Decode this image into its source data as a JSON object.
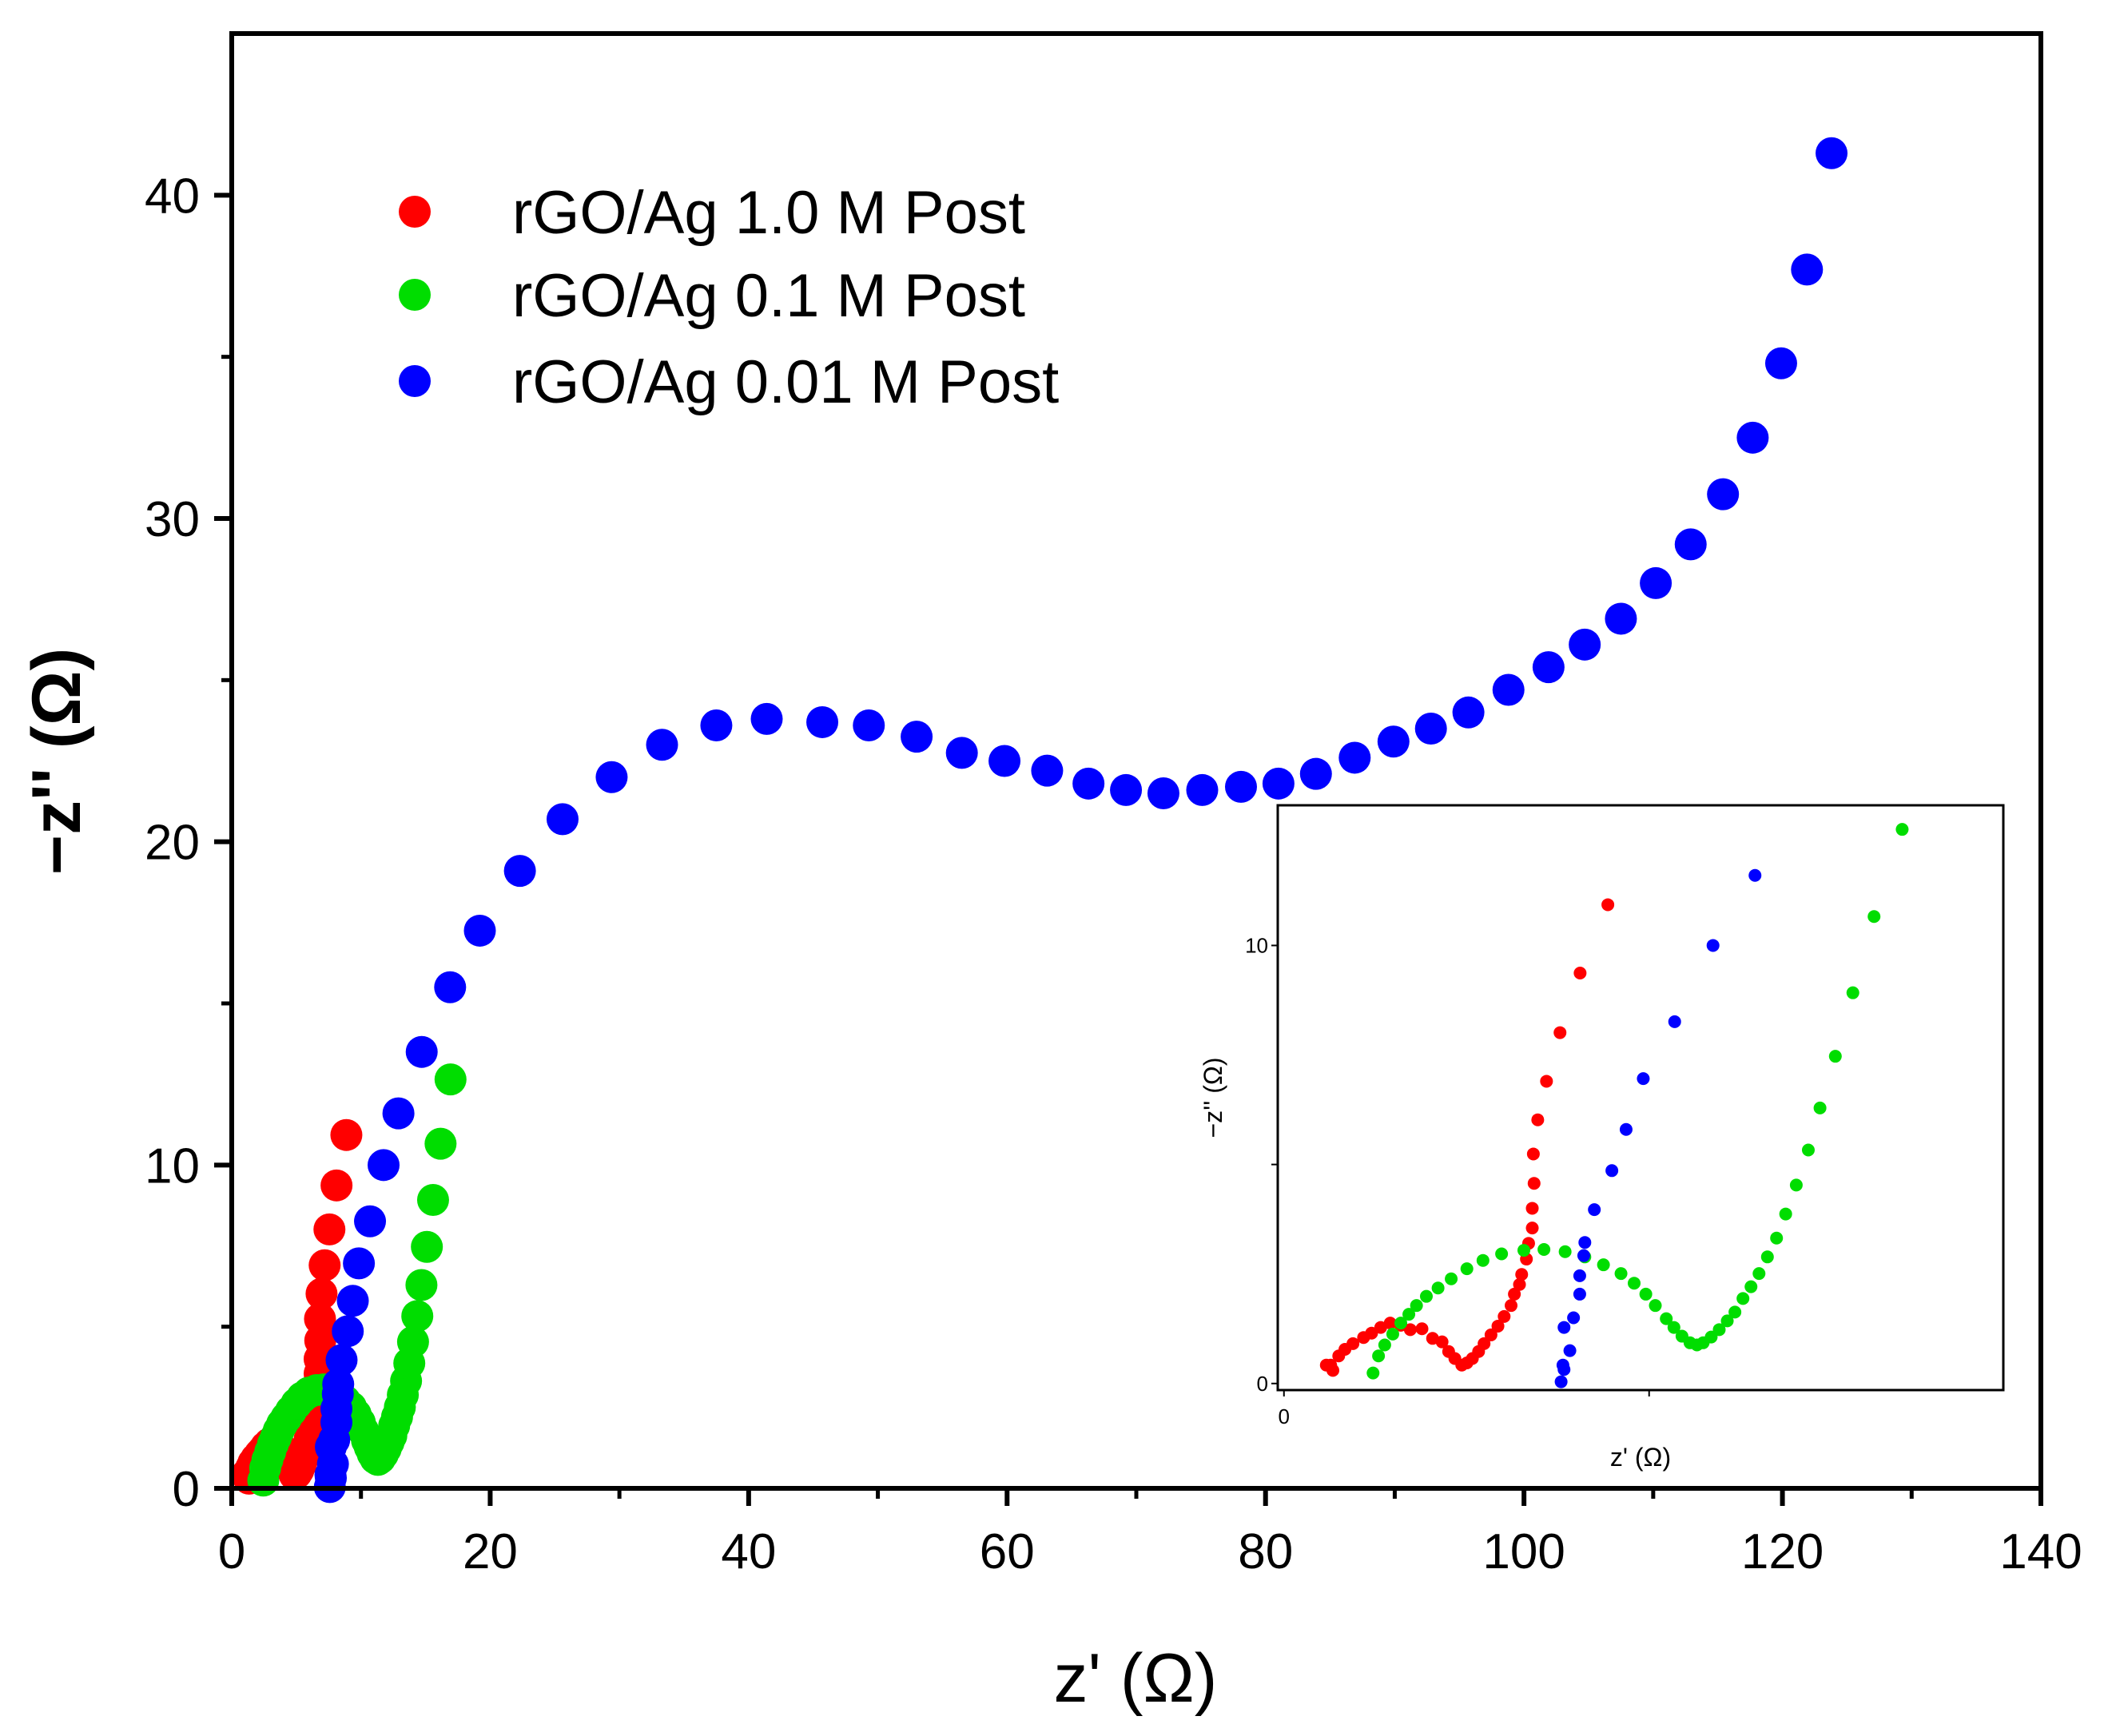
{
  "chart_data": [
    {
      "type": "scatter",
      "title": "",
      "xlabel": "z' (Ω)",
      "ylabel": "−z'' (Ω)",
      "xlim": [
        0,
        140
      ],
      "ylim": [
        0,
        45
      ],
      "xticks": [
        0,
        20,
        40,
        60,
        80,
        100,
        120,
        140
      ],
      "xtick_labels": [
        "0",
        "20",
        "40",
        "60",
        "80",
        "100",
        "120",
        "140"
      ],
      "yticks": [
        0,
        10,
        20,
        30,
        40
      ],
      "ytick_labels": [
        "0",
        "10",
        "20",
        "30",
        "40"
      ],
      "grid": false,
      "legend_position": "top-left",
      "series": [
        {
          "name": "rGO/Ag 1.0 M Post",
          "color": "#ff0000",
          "x": [
            1.16,
            1.34,
            1.28,
            1.5,
            1.67,
            1.89,
            2.18,
            2.4,
            2.65,
            2.91,
            3.2,
            3.46,
            3.78,
            4.07,
            4.33,
            4.51,
            4.68,
            4.87,
            5.01,
            5.16,
            5.33,
            5.48,
            5.67,
            5.86,
            6.03,
            6.22,
            6.31,
            6.45,
            6.51,
            6.64,
            6.7,
            6.8,
            6.8,
            6.85,
            6.83,
            6.95,
            7.19,
            7.56,
            8.11,
            8.87
          ],
          "y": [
            0.42,
            0.3,
            0.42,
            0.63,
            0.78,
            0.91,
            1.05,
            1.15,
            1.28,
            1.38,
            1.33,
            1.23,
            1.25,
            1.03,
            0.95,
            0.73,
            0.57,
            0.42,
            0.47,
            0.57,
            0.73,
            0.91,
            1.11,
            1.31,
            1.53,
            1.78,
            2.04,
            2.26,
            2.49,
            2.84,
            3.2,
            3.55,
            4.0,
            4.57,
            5.24,
            6.02,
            6.9,
            8.01,
            9.37,
            10.93
          ]
        },
        {
          "name": "rGO/Ag 0.1 M Post",
          "color": "#00dd00",
          "x": [
            2.44,
            2.59,
            2.76,
            2.98,
            3.2,
            3.42,
            3.63,
            3.9,
            4.22,
            4.58,
            5.01,
            5.45,
            5.96,
            6.57,
            7.12,
            7.7,
            8.24,
            8.75,
            9.23,
            9.59,
            9.91,
            10.17,
            10.47,
            10.68,
            10.9,
            11.12,
            11.31,
            11.48,
            11.7,
            11.92,
            12.14,
            12.35,
            12.57,
            12.79,
            13.01,
            13.24,
            13.49,
            13.74,
            14.03,
            14.36,
            14.68,
            15.1,
            15.58,
            16.16,
            16.93
          ],
          "y": [
            0.24,
            0.63,
            0.88,
            1.13,
            1.38,
            1.58,
            1.78,
            1.99,
            2.18,
            2.39,
            2.62,
            2.81,
            2.96,
            3.04,
            3.06,
            3.01,
            2.89,
            2.71,
            2.51,
            2.29,
            2.04,
            1.78,
            1.48,
            1.28,
            1.08,
            0.93,
            0.88,
            0.93,
            1.06,
            1.23,
            1.43,
            1.63,
            1.94,
            2.21,
            2.51,
            2.89,
            3.32,
            3.87,
            4.53,
            5.33,
            6.29,
            7.47,
            8.92,
            10.66,
            12.65
          ]
        },
        {
          "name": "rGO/Ag 0.01 M Post",
          "color": "#0000ff",
          "x": [
            7.59,
            7.67,
            7.64,
            7.83,
            7.67,
            7.93,
            8.1,
            8.1,
            8.21,
            8.24,
            8.5,
            8.98,
            9.37,
            9.84,
            10.7,
            11.75,
            12.9,
            14.7,
            16.9,
            19.2,
            22.3,
            25.6,
            29.4,
            33.3,
            37.5,
            41.4,
            45.7,
            49.3,
            53.0,
            56.5,
            59.8,
            63.1,
            66.3,
            69.2,
            72.1,
            75.1,
            78.1,
            81.0,
            83.9,
            86.9,
            89.9,
            92.8,
            95.7,
            98.8,
            101.9,
            104.7,
            107.5,
            110.2,
            112.9,
            115.4,
            117.7,
            119.9,
            121.9,
            123.8
          ],
          "y": [
            0.04,
            0.32,
            0.42,
            0.75,
            1.28,
            1.5,
            2.04,
            2.46,
            2.92,
            3.22,
            3.97,
            4.86,
            5.8,
            6.96,
            8.26,
            10.0,
            11.6,
            13.5,
            15.5,
            17.25,
            19.1,
            20.7,
            22.0,
            23.0,
            23.6,
            23.8,
            23.7,
            23.6,
            23.25,
            22.75,
            22.5,
            22.2,
            21.8,
            21.6,
            21.5,
            21.6,
            21.7,
            21.8,
            22.1,
            22.6,
            23.1,
            23.5,
            24.0,
            24.7,
            25.4,
            26.1,
            26.9,
            28.0,
            29.2,
            30.75,
            32.5,
            34.8,
            37.7,
            41.3
          ]
        }
      ]
    },
    {
      "type": "scatter",
      "role": "inset",
      "title": "",
      "xlabel": "z' (Ω)",
      "ylabel": "−z'' (Ω)",
      "xlim": [
        -0.17,
        19.7
      ],
      "ylim": [
        -0.15,
        13.2
      ],
      "xticks": [
        0,
        10
      ],
      "xtick_labels": [
        "0",
        ""
      ],
      "yticks": [
        0,
        5,
        10
      ],
      "ytick_labels": [
        "0",
        "",
        "10"
      ],
      "grid": false,
      "series_from_main": "same three series, zoomed to low-impedance region"
    }
  ]
}
